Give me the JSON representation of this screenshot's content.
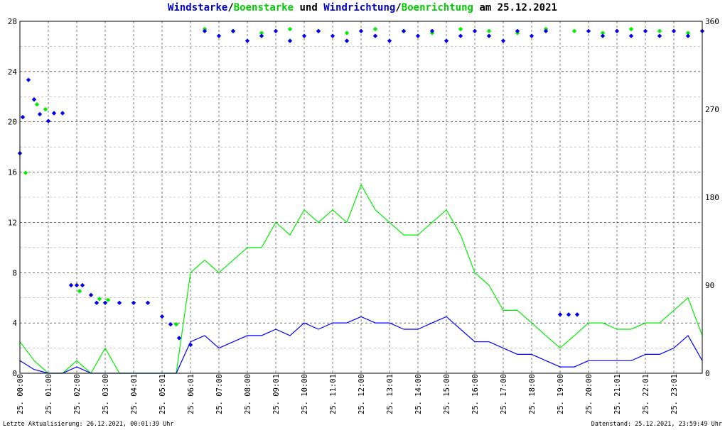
{
  "title": {
    "part1": "Windstarke",
    "sep1": "/",
    "part2": "Boenstarke",
    "part3": " und ",
    "part4": "Windrichtung",
    "sep2": "/",
    "part5": "Boenrichtung",
    "part6": " am 25.12.2021"
  },
  "footer": {
    "left": "Letzte Aktualisierung: 26.12.2021, 00:01:39 Uhr",
    "right": "Datenstand: 25.12.2021, 23:59:49 Uhr"
  },
  "colors": {
    "wind_speed": "#0000ff",
    "gust_speed": "#00ee00",
    "wind_direction": "#0000ee",
    "gust_direction": "#00ee00",
    "grid": "#000000"
  },
  "chart_data": {
    "type": "line",
    "title": "Windstarke/Boenstarke und Windrichtung/Boenrichtung am 25.12.2021",
    "x_tick_labels": [
      "25. 00:00",
      "25. 01:00",
      "25. 02:00",
      "25. 03:00",
      "25. 04:01",
      "25. 05:01",
      "25. 06:01",
      "25. 07:00",
      "25. 08:00",
      "25. 09:01",
      "25. 10:00",
      "25. 11:01",
      "25. 12:00",
      "25. 13:01",
      "25. 14:00",
      "25. 15:00",
      "25. 16:00",
      "25. 17:00",
      "25. 18:00",
      "25. 19:00",
      "25. 20:00",
      "25. 21:01",
      "25. 22:01",
      "25. 23:01"
    ],
    "x_range_hours": [
      0,
      24
    ],
    "y_left": {
      "ylim": [
        0,
        28
      ],
      "ticks": [
        "0",
        "4",
        "8",
        "12",
        "16",
        "20",
        "24",
        "28"
      ]
    },
    "y_right": {
      "ylim": [
        0,
        360
      ],
      "ticks": [
        "0",
        "90",
        "180",
        "270",
        "360"
      ]
    },
    "grid": true,
    "series": [
      {
        "name": "Windstarke",
        "axis": "left",
        "style": "line",
        "x": [
          0,
          0.5,
          1,
          1.5,
          2,
          2.5,
          3,
          3.5,
          4,
          4.5,
          5,
          5.5,
          6,
          6.5,
          7,
          7.5,
          8,
          8.5,
          9,
          9.5,
          10,
          10.5,
          11,
          11.5,
          12,
          12.5,
          13,
          13.5,
          14,
          14.5,
          15,
          15.5,
          16,
          16.5,
          17,
          17.5,
          18,
          18.5,
          19,
          19.5,
          20,
          20.5,
          21,
          21.5,
          22,
          22.5,
          23,
          23.5,
          24
        ],
        "y": [
          1,
          0.3,
          0,
          0,
          0.5,
          0,
          0,
          0,
          0,
          0,
          0,
          0,
          2.5,
          3,
          2,
          2.5,
          3,
          3,
          3.5,
          3,
          4,
          3.5,
          4,
          4,
          4.5,
          4,
          4,
          3.5,
          3.5,
          4,
          4.5,
          3.5,
          2.5,
          2.5,
          2,
          1.5,
          1.5,
          1,
          0.5,
          0.5,
          1,
          1,
          1,
          1,
          1.5,
          1.5,
          2,
          3,
          1
        ]
      },
      {
        "name": "Boenstarke",
        "axis": "left",
        "style": "line",
        "x": [
          0,
          0.5,
          1,
          1.5,
          2,
          2.5,
          3,
          3.5,
          4,
          4.5,
          5,
          5.5,
          6,
          6.5,
          7,
          7.5,
          8,
          8.5,
          9,
          9.5,
          10,
          10.5,
          11,
          11.5,
          12,
          12.5,
          13,
          13.5,
          14,
          14.5,
          15,
          15.5,
          16,
          16.5,
          17,
          17.5,
          18,
          18.5,
          19,
          19.5,
          20,
          20.5,
          21,
          21.5,
          22,
          22.5,
          23,
          23.5,
          24
        ],
        "y": [
          2.5,
          1,
          0,
          0,
          1,
          0,
          2,
          0,
          0,
          0,
          0,
          0,
          8,
          9,
          8,
          9,
          10,
          10,
          12,
          11,
          13,
          12,
          13,
          12,
          15,
          13,
          12,
          11,
          11,
          12,
          13,
          11,
          8,
          7,
          5,
          5,
          4,
          3,
          2,
          3,
          4,
          4,
          3.5,
          3.5,
          4,
          4,
          5,
          6,
          3
        ]
      },
      {
        "name": "Windrichtung",
        "axis": "right",
        "style": "markers",
        "x": [
          0,
          0.1,
          0.3,
          0.5,
          0.7,
          1,
          1.2,
          1.5,
          1.8,
          2,
          2.2,
          2.5,
          2.7,
          3,
          3.5,
          4,
          4.5,
          5,
          5.3,
          5.6,
          6,
          6.5,
          7,
          7.5,
          8,
          8.5,
          9,
          9.5,
          10,
          10.5,
          11,
          11.5,
          12,
          12.5,
          13,
          13.5,
          14,
          14.5,
          15,
          15.5,
          16,
          16.5,
          17,
          17.5,
          18,
          18.5,
          19,
          19.3,
          19.6,
          20,
          20.5,
          21,
          21.5,
          22,
          22.5,
          23,
          23.5,
          24
        ],
        "y": [
          225,
          262,
          300,
          280,
          265,
          258,
          266,
          266,
          90,
          90,
          90,
          80,
          72,
          72,
          72,
          72,
          72,
          58,
          50,
          36,
          29,
          350,
          345,
          350,
          340,
          345,
          350,
          340,
          345,
          350,
          345,
          340,
          350,
          345,
          340,
          350,
          345,
          350,
          340,
          345,
          350,
          345,
          340,
          350,
          345,
          350,
          60,
          60,
          60,
          350,
          345,
          350,
          345,
          350,
          345,
          350,
          345,
          350
        ]
      },
      {
        "name": "Boenrichtung",
        "axis": "right",
        "style": "markers",
        "x": [
          0.2,
          0.6,
          0.9,
          2.1,
          2.8,
          3.1,
          5.5,
          6.5,
          7.5,
          8.5,
          9.5,
          10.5,
          11.5,
          12.5,
          13.5,
          14.5,
          15.5,
          16.5,
          17.5,
          18.5,
          19.5,
          20.5,
          21.5,
          22.5,
          23.5
        ],
        "y": [
          205,
          275,
          270,
          84,
          76,
          75,
          50,
          352,
          350,
          348,
          352,
          350,
          348,
          352,
          350,
          348,
          352,
          350,
          348,
          352,
          350,
          348,
          352,
          350,
          348
        ]
      }
    ]
  }
}
